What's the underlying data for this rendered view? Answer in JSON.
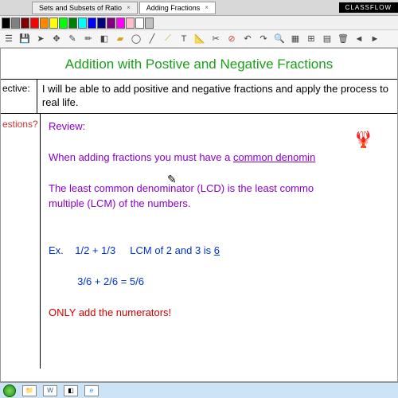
{
  "tabs": {
    "tab1": "Sets and Subsets of Ratio",
    "tab2": "Adding Fractions"
  },
  "badge": "CLASSFLOW",
  "colors": {
    "swatches": [
      "#000000",
      "#808080",
      "#800000",
      "#ff0000",
      "#ff8800",
      "#ffff00",
      "#00ff00",
      "#008000",
      "#00ffff",
      "#0000ff",
      "#000080",
      "#800080",
      "#ff00ff",
      "#ffc0cb",
      "#ffffff",
      "#c0c0c0"
    ]
  },
  "title": "Addition with Postive and Negative Fractions",
  "objective": {
    "label": "ective:",
    "text": "I will be able to add positive and negative fractions and apply the process to real life."
  },
  "questions": "estions?",
  "content": {
    "review": "Review:",
    "line1a": "When adding fractions you must have a ",
    "line1b": "common denomin",
    "line2": "The least common denominator (LCD) is the least commo",
    "line3": "multiple (LCM) of the numbers.",
    "ex_label": "Ex.",
    "ex1": "1/2 + 1/3",
    "ex1b": "LCM of 2 and 3 is ",
    "ex1c": "6",
    "ex2": "3/6 + 2/6 = 5/6",
    "only": "ONLY add the numerators!"
  }
}
